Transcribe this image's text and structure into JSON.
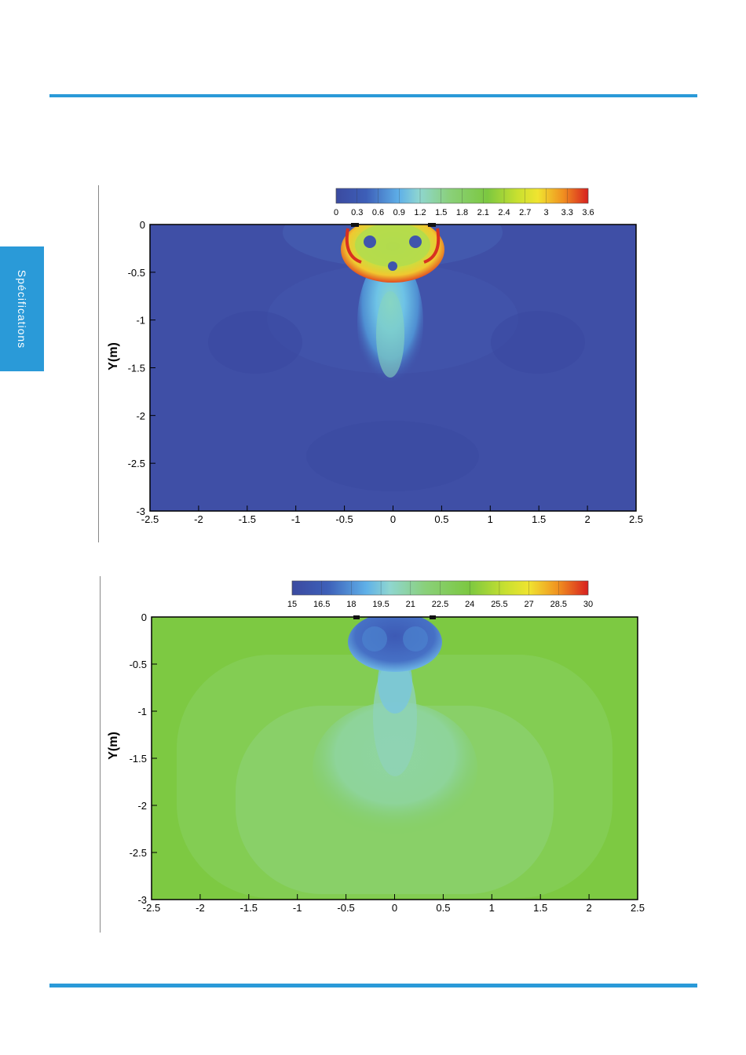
{
  "page": {
    "side_tab_label": "Spécifications",
    "accent_color": "#2a9ad8"
  },
  "figures": [
    {
      "id": "velocity",
      "ylabel": "Y(m)",
      "x_ticks": [
        "-2.5",
        "-2",
        "-1.5",
        "-1",
        "-0.5",
        "0",
        "0.5",
        "1",
        "1.5",
        "2",
        "2.5"
      ],
      "y_ticks": [
        "0",
        "-0.5",
        "-1",
        "-1.5",
        "-2",
        "-2.5",
        "-3"
      ],
      "colorbar_ticks": [
        "0",
        "0.3",
        "0.6",
        "0.9",
        "1.2",
        "1.5",
        "1.8",
        "2.1",
        "2.4",
        "2.7",
        "3",
        "3.3",
        "3.6"
      ]
    },
    {
      "id": "temperature",
      "ylabel": "Y(m)",
      "x_ticks": [
        "-2.5",
        "-2",
        "-1.5",
        "-1",
        "-0.5",
        "0",
        "0.5",
        "1",
        "1.5",
        "2",
        "2.5"
      ],
      "y_ticks": [
        "0",
        "-0.5",
        "-1",
        "-1.5",
        "-2",
        "-2.5",
        "-3"
      ],
      "colorbar_ticks": [
        "15",
        "16.5",
        "18",
        "19.5",
        "21",
        "22.5",
        "24",
        "25.5",
        "27",
        "28.5",
        "30"
      ]
    }
  ],
  "chart_data": [
    {
      "type": "heatmap",
      "title": "",
      "xlabel": "",
      "ylabel": "Y(m)",
      "xlim": [
        -2.5,
        2.5
      ],
      "ylim": [
        -3,
        0
      ],
      "colorbar_range": [
        0,
        3.6
      ],
      "colorbar_ticks": [
        0,
        0.3,
        0.6,
        0.9,
        1.2,
        1.5,
        1.8,
        2.1,
        2.4,
        2.7,
        3,
        3.3,
        3.6
      ],
      "colorbar_colors": [
        "#3b4aa0",
        "#3d5fb8",
        "#4a80d0",
        "#5fb0e8",
        "#8fd6d0",
        "#8ad07a",
        "#7cc840",
        "#a8d830",
        "#e8e830",
        "#f0b020",
        "#e86020",
        "#d82020"
      ],
      "background_level": 0.15,
      "features": {
        "jet_outlet_x": [
          -0.4,
          0.4
        ],
        "jet_core_max": 3.6,
        "plume_extent_y": [
          -0.4,
          -1.6
        ]
      }
    },
    {
      "type": "heatmap",
      "title": "",
      "xlabel": "",
      "ylabel": "Y(m)",
      "xlim": [
        -2.5,
        2.5
      ],
      "ylim": [
        -3,
        0
      ],
      "colorbar_range": [
        15,
        30
      ],
      "colorbar_ticks": [
        15,
        16.5,
        18,
        19.5,
        21,
        22.5,
        24,
        25.5,
        27,
        28.5,
        30
      ],
      "colorbar_colors": [
        "#3b4aa0",
        "#3d5fb8",
        "#4a80d0",
        "#5fb0e8",
        "#8fd6d0",
        "#8ad07a",
        "#7cc840",
        "#a8d830",
        "#e8e830",
        "#f0b020",
        "#e86020",
        "#d82020"
      ],
      "background_level": 24,
      "features": {
        "jet_outlet_x": [
          -0.4,
          0.4
        ],
        "jet_core_min": 15,
        "plume_extent_y": [
          -0.4,
          -1.6
        ]
      }
    }
  ]
}
